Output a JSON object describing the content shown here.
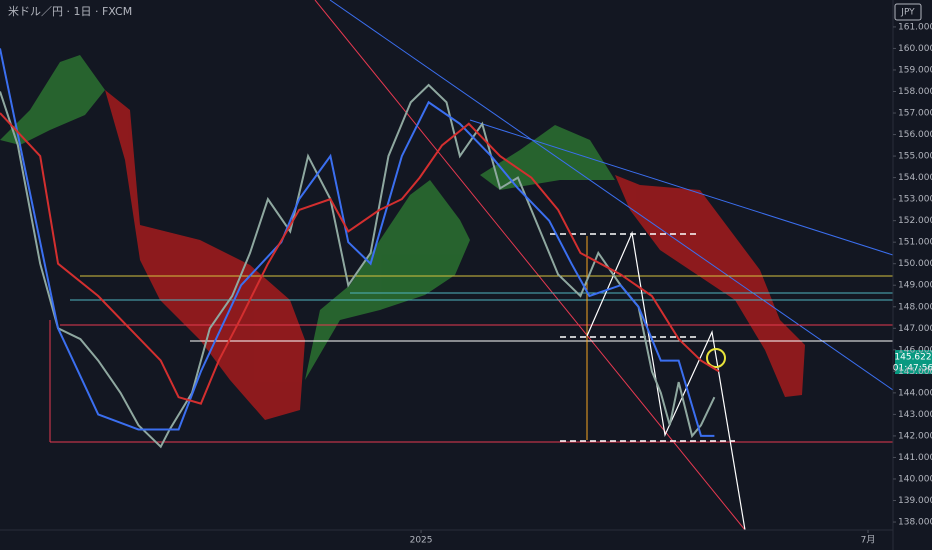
{
  "chart_data": {
    "type": "line",
    "title": "米ドル／円 · 1日 · FXCM",
    "currency": "JPY",
    "last_price_label": "145.622",
    "countdown": "01:47:56",
    "xlim": [
      0,
      200
    ],
    "xticks": [
      {
        "value": 94.3,
        "label": "2025"
      },
      {
        "value": 194.4,
        "label": "7月"
      }
    ],
    "ylim": [
      137.63,
      162.25
    ],
    "yticks": [
      {
        "value": 138,
        "label": "138.000"
      },
      {
        "value": 139,
        "label": "139.000"
      },
      {
        "value": 140,
        "label": "140.000"
      },
      {
        "value": 141,
        "label": "141.000"
      },
      {
        "value": 142,
        "label": "142.000"
      },
      {
        "value": 143,
        "label": "143.000"
      },
      {
        "value": 144,
        "label": "144.000"
      },
      {
        "value": 145,
        "label": "145.000"
      },
      {
        "value": 146,
        "label": "146.000"
      },
      {
        "value": 147,
        "label": "147.000"
      },
      {
        "value": 148,
        "label": "148.000"
      },
      {
        "value": 149,
        "label": "149.000"
      },
      {
        "value": 150,
        "label": "150.000"
      },
      {
        "value": 151,
        "label": "151.000"
      },
      {
        "value": 152,
        "label": "152.000"
      },
      {
        "value": 153,
        "label": "153.000"
      },
      {
        "value": 154,
        "label": "154.000"
      },
      {
        "value": 155,
        "label": "155.000"
      },
      {
        "value": 156,
        "label": "156.000"
      },
      {
        "value": 157,
        "label": "157.000"
      },
      {
        "value": 158,
        "label": "158.000"
      },
      {
        "value": 159,
        "label": "159.000"
      },
      {
        "value": 160,
        "label": "160.000"
      },
      {
        "value": 161,
        "label": "161.000"
      }
    ],
    "series": [
      {
        "color": "#8fa8a0",
        "x": [
          0,
          4,
          9,
          13,
          18,
          22,
          27,
          31,
          36,
          38,
          43,
          47,
          52,
          56,
          60,
          65,
          69,
          74,
          78,
          83,
          87,
          92,
          96,
          100,
          103,
          108,
          112,
          116,
          121,
          125,
          130,
          134,
          139,
          143,
          146,
          148,
          150,
          152,
          155,
          157,
          160
        ],
        "values": [
          158,
          155.5,
          150,
          147,
          146.5,
          145.5,
          144,
          142.5,
          141.5,
          142.3,
          144,
          147,
          148.5,
          150.5,
          153,
          151.5,
          155,
          153,
          149,
          150.5,
          155,
          157.5,
          158.3,
          157.5,
          155,
          156.5,
          153.5,
          154,
          151.5,
          149.5,
          148.5,
          150.5,
          149,
          148,
          145,
          144,
          142.5,
          144.5,
          142,
          142.5,
          143.8
        ]
      },
      {
        "color": "#3b6ff0",
        "x": [
          0,
          7,
          13,
          22,
          31,
          34,
          40,
          45,
          54,
          63,
          67,
          74,
          78,
          83,
          90,
          96,
          103,
          110,
          116,
          123,
          128,
          132,
          139,
          143,
          148,
          152,
          157,
          160
        ],
        "values": [
          160,
          153,
          147,
          143,
          142.3,
          142.3,
          142.3,
          145,
          149,
          151,
          153,
          155,
          151,
          150,
          155,
          157.5,
          156.5,
          155,
          153.5,
          152,
          150,
          148.5,
          149,
          148,
          145.5,
          145.5,
          142,
          142
        ]
      },
      {
        "color": "#d32f2f",
        "x": [
          0,
          9,
          13,
          22,
          29,
          36,
          40,
          45,
          49,
          54,
          60,
          67,
          74,
          78,
          85,
          90,
          94,
          99,
          105,
          112,
          119,
          125,
          130,
          139,
          146,
          152,
          157,
          161
        ],
        "values": [
          157,
          155,
          150,
          148.5,
          147,
          145.5,
          143.8,
          143.5,
          145.5,
          147.5,
          150,
          152.5,
          153,
          151.5,
          152.5,
          153,
          154,
          155.5,
          156.5,
          155,
          154,
          152.5,
          150.5,
          149.5,
          148.5,
          146.5,
          145.5,
          145
        ]
      }
    ]
  }
}
